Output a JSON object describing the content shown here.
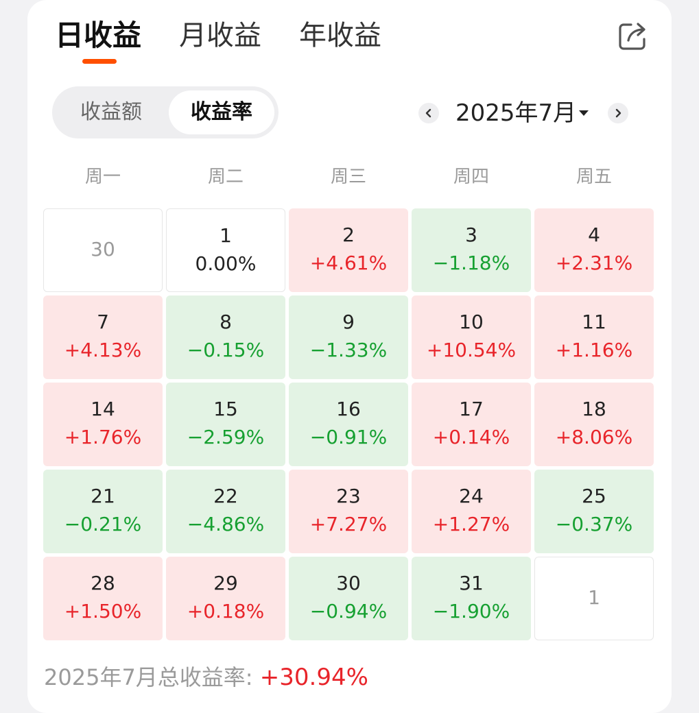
{
  "tabs": [
    {
      "label": "日收益",
      "active": true
    },
    {
      "label": "月收益",
      "active": false
    },
    {
      "label": "年收益",
      "active": false
    }
  ],
  "share_icon": "share-icon",
  "segment": {
    "left_label": "收益额",
    "right_label": "收益率",
    "selected": "收益率"
  },
  "month_picker": {
    "label": "2025年7月",
    "prev_icon": "chevron-left-icon",
    "next_icon": "chevron-right-icon"
  },
  "weekdays": [
    "周一",
    "周二",
    "周三",
    "周四",
    "周五"
  ],
  "calendar": [
    {
      "day": "30",
      "value": "",
      "state": "other"
    },
    {
      "day": "1",
      "value": "0.00%",
      "state": "zero"
    },
    {
      "day": "2",
      "value": "+4.61%",
      "state": "pos"
    },
    {
      "day": "3",
      "value": "−1.18%",
      "state": "neg"
    },
    {
      "day": "4",
      "value": "+2.31%",
      "state": "pos"
    },
    {
      "day": "7",
      "value": "+4.13%",
      "state": "pos"
    },
    {
      "day": "8",
      "value": "−0.15%",
      "state": "neg"
    },
    {
      "day": "9",
      "value": "−1.33%",
      "state": "neg"
    },
    {
      "day": "10",
      "value": "+10.54%",
      "state": "pos"
    },
    {
      "day": "11",
      "value": "+1.16%",
      "state": "pos"
    },
    {
      "day": "14",
      "value": "+1.76%",
      "state": "pos"
    },
    {
      "day": "15",
      "value": "−2.59%",
      "state": "neg"
    },
    {
      "day": "16",
      "value": "−0.91%",
      "state": "neg"
    },
    {
      "day": "17",
      "value": "+0.14%",
      "state": "pos"
    },
    {
      "day": "18",
      "value": "+8.06%",
      "state": "pos"
    },
    {
      "day": "21",
      "value": "−0.21%",
      "state": "neg"
    },
    {
      "day": "22",
      "value": "−4.86%",
      "state": "neg"
    },
    {
      "day": "23",
      "value": "+7.27%",
      "state": "pos"
    },
    {
      "day": "24",
      "value": "+1.27%",
      "state": "pos"
    },
    {
      "day": "25",
      "value": "−0.37%",
      "state": "neg"
    },
    {
      "day": "28",
      "value": "+1.50%",
      "state": "pos"
    },
    {
      "day": "29",
      "value": "+0.18%",
      "state": "pos"
    },
    {
      "day": "30",
      "value": "−0.94%",
      "state": "neg"
    },
    {
      "day": "31",
      "value": "−1.90%",
      "state": "neg"
    },
    {
      "day": "1",
      "value": "",
      "state": "other"
    }
  ],
  "total": {
    "label": "2025年7月总收益率: ",
    "value": "+30.94%"
  },
  "colors": {
    "accent": "#ff4f00",
    "up": "#e8242a",
    "down": "#16a031",
    "up_bg": "#fde6e6",
    "down_bg": "#e3f3e4"
  }
}
